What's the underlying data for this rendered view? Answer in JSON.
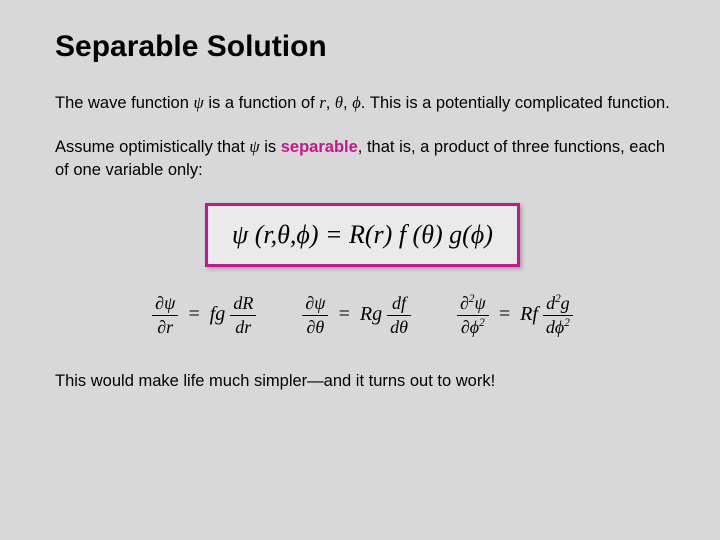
{
  "slide": {
    "background_color": "#d8d8d8",
    "title": "Separable Solution",
    "title_fontsize": 30,
    "accent_color": "#c6168d",
    "body_fontsize": 16.5,
    "para1_a": "The wave function ",
    "psi": "ψ",
    "para1_b": " is a function of ",
    "r": "r",
    "comma1": ", ",
    "theta": "θ",
    "comma2": ", ",
    "phi": "ϕ",
    "para1_c": ". This is a potentially complicated function.",
    "para2_a": "Assume optimistically that ",
    "para2_b": " is ",
    "separable": "separable",
    "para2_c": ", that is, a product of three functions, each of one variable only:",
    "equation_main": "ψ (r,θ,ϕ) = R(r) f (θ) g(ϕ)",
    "equation_fontsize": 26,
    "derivs": {
      "d1_num": "∂ψ",
      "d1_den": "∂r",
      "d1_rhs_a": "fg",
      "d1_rhs_num": "dR",
      "d1_rhs_den": "dr",
      "d2_num": "∂ψ",
      "d2_den": "∂θ",
      "d2_rhs_a": "Rg",
      "d2_rhs_num": "df",
      "d2_rhs_den": "dθ",
      "d3_num_a": "∂",
      "d3_num_sup": "2",
      "d3_num_b": "ψ",
      "d3_den_a": "∂ϕ",
      "d3_den_sup": "2",
      "d3_rhs_a": "Rf",
      "d3_rhs_num_a": "d",
      "d3_rhs_num_sup": "2",
      "d3_rhs_num_b": "g",
      "d3_rhs_den_a": "dϕ",
      "d3_rhs_den_sup": "2"
    },
    "para3": "This would make life much simpler—and it turns out to work!"
  }
}
